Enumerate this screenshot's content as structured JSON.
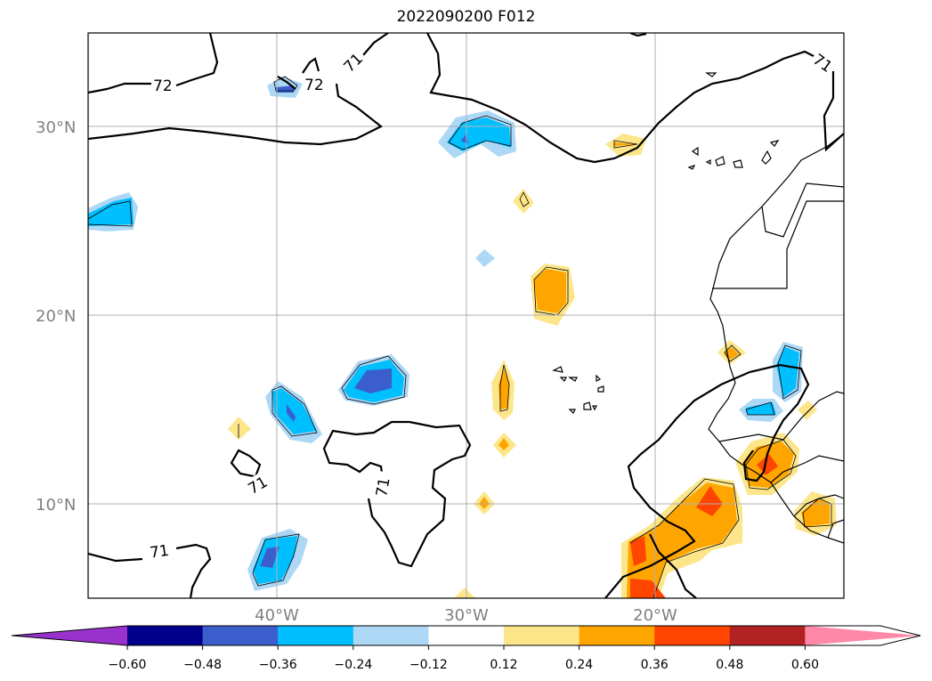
{
  "title": "2022090200 F012",
  "map": {
    "lat_labels": [
      "30°N",
      "20°N",
      "10°N"
    ],
    "lon_labels": [
      "40°W",
      "30°W",
      "20°W"
    ],
    "contour_labels": [
      "72",
      "72",
      "71",
      "71",
      "71",
      "71",
      "71"
    ],
    "colors": {
      "grid": "#b0b0b0",
      "coast": "#000000",
      "light_blue": "#add8f5",
      "deep_sky_blue": "#00bfff",
      "royal_blue": "#3a5fcd",
      "yellow": "#fde68a",
      "orange": "#ffa500",
      "orange_red": "#ff4500"
    }
  },
  "colorbar": {
    "ticks": [
      "−0.60",
      "−0.48",
      "−0.36",
      "−0.24",
      "−0.12",
      "0.12",
      "0.24",
      "0.36",
      "0.48",
      "0.60"
    ],
    "colors": [
      "#9932cc",
      "#00008b",
      "#3a5fcd",
      "#00bfff",
      "#add8f5",
      "#ffffff",
      "#fde68a",
      "#ffa500",
      "#ff4500",
      "#b22222",
      "#ff88a8"
    ]
  }
}
